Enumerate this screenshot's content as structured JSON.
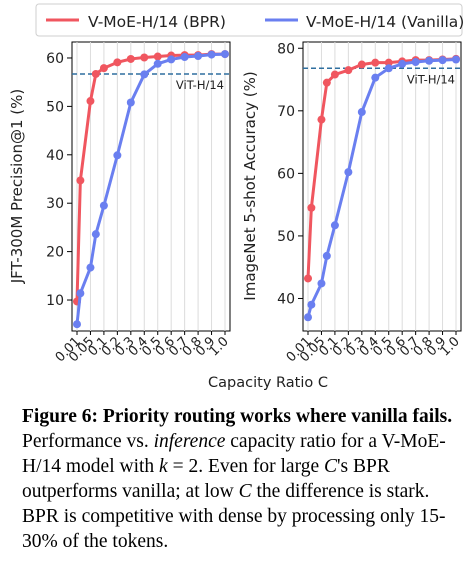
{
  "legend": {
    "items": [
      {
        "label": "V-MoE-H/14 (BPR)",
        "color": "#f0565f"
      },
      {
        "label": "V-MoE-H/14 (Vanilla)",
        "color": "#6a7ff0"
      }
    ]
  },
  "xlabel": "Capacity Ratio C",
  "chart_data": [
    {
      "type": "line",
      "ylabel": "JFT-300M Precision@1 (%)",
      "x": [
        "0.01",
        "0.05",
        "0.1",
        "0.2",
        "0.3",
        "0.4",
        "0.5",
        "0.6",
        "0.7",
        "0.8",
        "0.9",
        "1.0"
      ],
      "xticklabels": [
        "0.01",
        "0.05",
        "0.1",
        "0.2",
        "0.3",
        "0.4",
        "0.5",
        "0.6",
        "0.7",
        "0.8",
        "0.9",
        "1.0"
      ],
      "ylim": [
        3.6,
        63.3
      ],
      "yticks": [
        10,
        20,
        30,
        40,
        50,
        60
      ],
      "reference": {
        "label": "ViT-H/14",
        "value": 56.7
      },
      "series": [
        {
          "name": "V-MoE-H/14 (BPR)",
          "color": "#f0565f",
          "points": [
            [
              0.01,
              9.7
            ],
            [
              0.02,
              34.7
            ],
            [
              0.05,
              51.1
            ],
            [
              0.07,
              56.7
            ],
            [
              0.1,
              57.9
            ],
            [
              0.2,
              59.1
            ],
            [
              0.3,
              59.8
            ],
            [
              0.4,
              60.1
            ],
            [
              0.5,
              60.3
            ],
            [
              0.6,
              60.5
            ],
            [
              0.7,
              60.6
            ],
            [
              0.8,
              60.6
            ],
            [
              0.9,
              60.8
            ],
            [
              1.0,
              60.8
            ]
          ]
        },
        {
          "name": "V-MoE-H/14 (Vanilla)",
          "color": "#6a7ff0",
          "points": [
            [
              0.01,
              5.0
            ],
            [
              0.02,
              11.4
            ],
            [
              0.05,
              16.7
            ],
            [
              0.07,
              23.6
            ],
            [
              0.1,
              29.5
            ],
            [
              0.2,
              39.9
            ],
            [
              0.3,
              50.8
            ],
            [
              0.4,
              56.6
            ],
            [
              0.5,
              58.8
            ],
            [
              0.6,
              59.7
            ],
            [
              0.7,
              60.2
            ],
            [
              0.8,
              60.4
            ],
            [
              0.9,
              60.7
            ],
            [
              1.0,
              60.8
            ]
          ]
        }
      ]
    },
    {
      "type": "line",
      "ylabel": "ImageNet 5-shot Accuracy (%)",
      "x": [
        "0.01",
        "0.05",
        "0.1",
        "0.2",
        "0.3",
        "0.4",
        "0.5",
        "0.6",
        "0.7",
        "0.8",
        "0.9",
        "1.0"
      ],
      "xticklabels": [
        "0.01",
        "0.05",
        "0.1",
        "0.2",
        "0.3",
        "0.4",
        "0.5",
        "0.6",
        "0.7",
        "0.8",
        "0.9",
        "1.0"
      ],
      "ylim": [
        34.8,
        81.0
      ],
      "yticks": [
        40,
        50,
        60,
        70,
        80
      ],
      "reference": {
        "label": "ViT-H/14",
        "value": 76.8
      },
      "series": [
        {
          "name": "V-MoE-H/14 (BPR)",
          "color": "#f0565f",
          "points": [
            [
              0.01,
              43.2
            ],
            [
              0.02,
              54.5
            ],
            [
              0.05,
              68.6
            ],
            [
              0.07,
              74.5
            ],
            [
              0.1,
              75.8
            ],
            [
              0.2,
              76.5
            ],
            [
              0.3,
              77.4
            ],
            [
              0.4,
              77.7
            ],
            [
              0.5,
              77.7
            ],
            [
              0.6,
              77.9
            ],
            [
              0.7,
              78.1
            ],
            [
              0.8,
              78.1
            ],
            [
              0.9,
              78.2
            ],
            [
              1.0,
              78.3
            ]
          ]
        },
        {
          "name": "V-MoE-H/14 (Vanilla)",
          "color": "#6a7ff0",
          "points": [
            [
              0.01,
              37.0
            ],
            [
              0.02,
              39.0
            ],
            [
              0.05,
              42.4
            ],
            [
              0.07,
              46.8
            ],
            [
              0.1,
              51.7
            ],
            [
              0.2,
              60.2
            ],
            [
              0.3,
              69.8
            ],
            [
              0.4,
              75.3
            ],
            [
              0.5,
              76.8
            ],
            [
              0.6,
              77.5
            ],
            [
              0.7,
              77.8
            ],
            [
              0.8,
              78.0
            ],
            [
              0.9,
              78.1
            ],
            [
              1.0,
              78.2
            ]
          ]
        }
      ]
    }
  ],
  "caption": {
    "figure_label": "Figure 6:",
    "bold_title": "Priority routing works where vanilla fails.",
    "text_1": "Performance vs.",
    "italic": "inference",
    "text_2": "capacity ratio for a V-MoE-H/14 model with",
    "k_var": "k",
    "k_eq": "= 2. Even for large",
    "c_var_1": "C",
    "text_3": "'s BPR outperforms vanilla; at low",
    "c_var_2": "C",
    "text_4": "the difference is stark. BPR is competitive with dense by processing only 15-30% of the tokens."
  }
}
